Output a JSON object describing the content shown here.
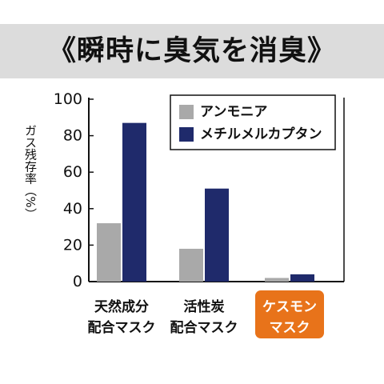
{
  "chart_data": {
    "type": "bar",
    "title": "《瞬時に臭気を消臭》",
    "ylabel": "ガス残存率（%）",
    "xlabel": "",
    "ylim": [
      0,
      100
    ],
    "yticks": [
      "0",
      "20",
      "40",
      "60",
      "80",
      "100"
    ],
    "grid": false,
    "legend_position": "top-right",
    "categories": [
      [
        "天然成分",
        "配合マスク"
      ],
      [
        "活性炭",
        "配合マスク"
      ],
      [
        "ケスモン",
        "マスク"
      ]
    ],
    "highlight_category_color": "#e8731a",
    "series": [
      {
        "name": "アンモニア",
        "color": "#a9a9a9",
        "values": [
          32,
          18,
          2
        ]
      },
      {
        "name": "メチルメルカプタン",
        "color": "#1f2a6b",
        "values": [
          87,
          51,
          4
        ]
      }
    ]
  }
}
